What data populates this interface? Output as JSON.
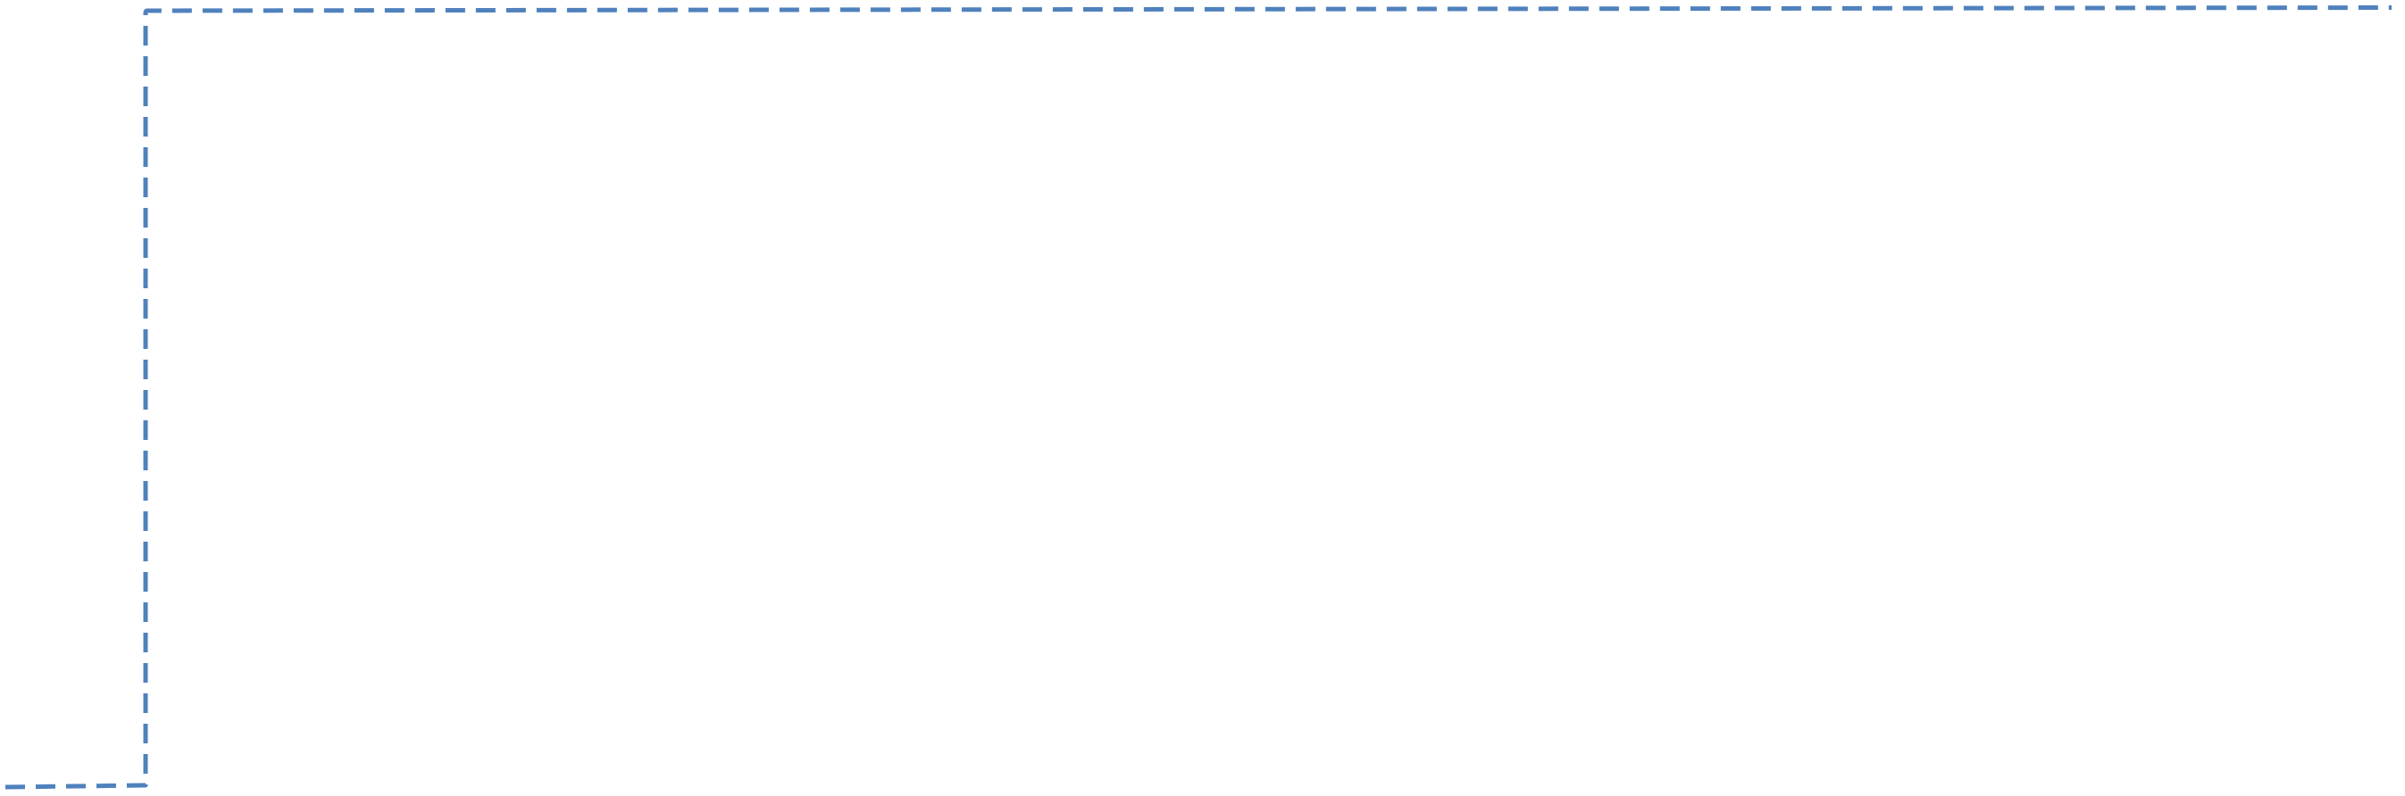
{
  "connector": {
    "color": "#4F81BD",
    "style": "dashed"
  }
}
